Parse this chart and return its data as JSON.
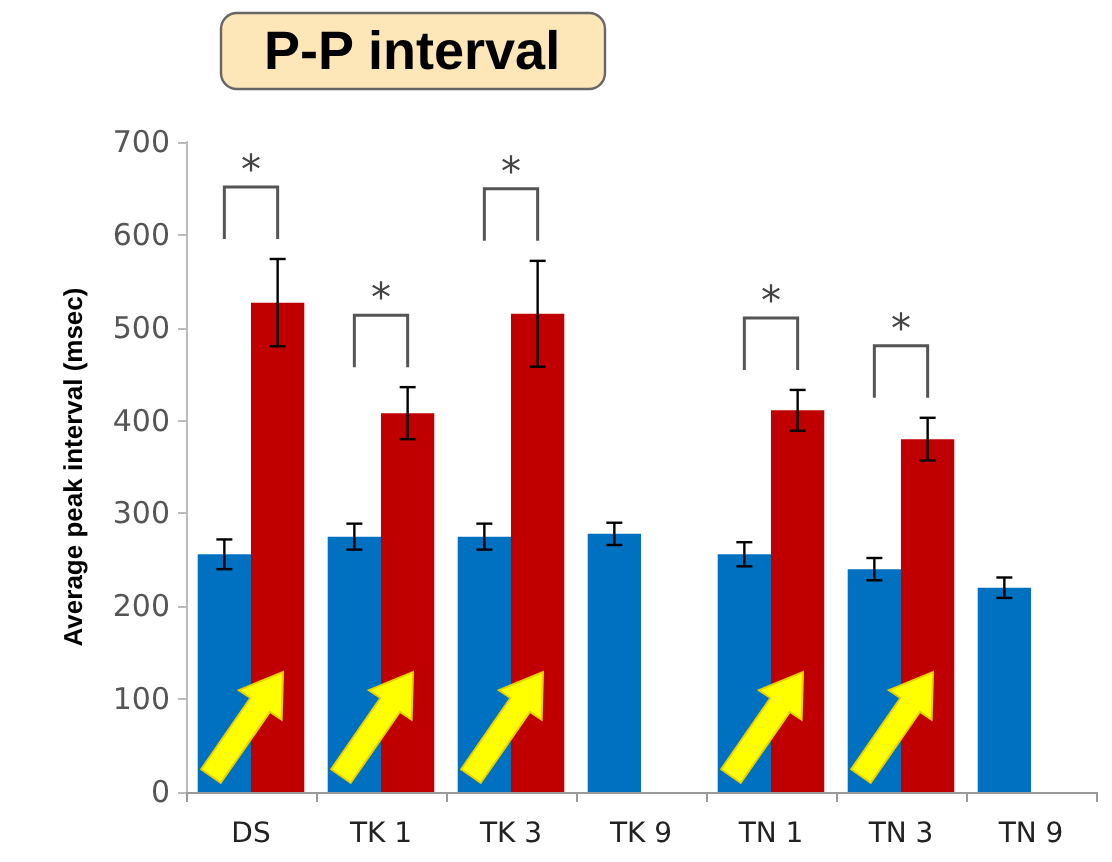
{
  "chart_data": {
    "type": "bar",
    "title": "P-P interval",
    "ylabel": "Average peak interval (msec)",
    "categories": [
      "DS",
      "TK 1",
      "TK 3",
      "TK 9",
      "TN 1",
      "TN 3",
      "TN 9"
    ],
    "series": [
      {
        "color": "#0070c0",
        "values": [
          256,
          275,
          275,
          278,
          256,
          240,
          220
        ],
        "errors": [
          16,
          14,
          14,
          12,
          13,
          12,
          11
        ]
      },
      {
        "color": "#c00000",
        "values": [
          527,
          408,
          515,
          null,
          411,
          380,
          null
        ],
        "errors": [
          47,
          28,
          57,
          null,
          22,
          23,
          null
        ]
      }
    ],
    "ylim": [
      0,
      700
    ],
    "yticks": [
      0,
      100,
      200,
      300,
      400,
      500,
      600,
      700
    ],
    "annotations": [
      "*",
      "*",
      "*",
      "*",
      "*"
    ]
  }
}
